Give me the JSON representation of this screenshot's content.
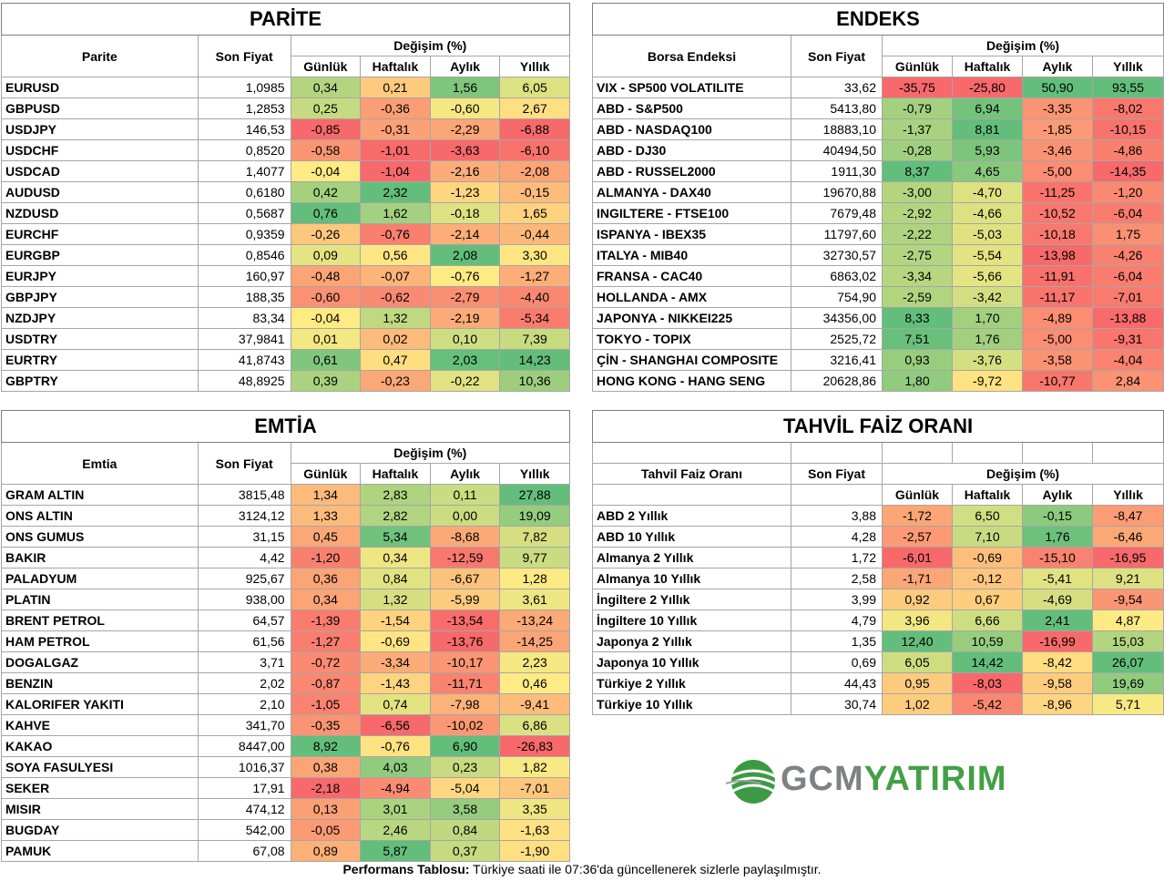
{
  "colors": {
    "low": "#f8696b",
    "mid": "#ffeb84",
    "high": "#63be7b"
  },
  "change_header": "Değişim (%)",
  "period_headers": [
    "Günlük",
    "Haftalık",
    "Aylık",
    "Yıllık"
  ],
  "price_header": "Son Fiyat",
  "parite": {
    "title": "PARİTE",
    "name_header": "Parite",
    "rows": [
      [
        "EURUSD",
        "1,0985",
        "0,34",
        "0,21",
        "1,56",
        "6,05"
      ],
      [
        "GBPUSD",
        "1,2853",
        "0,25",
        "-0,36",
        "-0,60",
        "2,67"
      ],
      [
        "USDJPY",
        "146,53",
        "-0,85",
        "-0,31",
        "-2,29",
        "-6,88"
      ],
      [
        "USDCHF",
        "0,8520",
        "-0,58",
        "-1,01",
        "-3,63",
        "-6,10"
      ],
      [
        "USDCAD",
        "1,4077",
        "-0,04",
        "-1,04",
        "-2,16",
        "-2,08"
      ],
      [
        "AUDUSD",
        "0,6180",
        "0,42",
        "2,32",
        "-1,23",
        "-0,15"
      ],
      [
        "NZDUSD",
        "0,5687",
        "0,76",
        "1,62",
        "-0,18",
        "1,65"
      ],
      [
        "EURCHF",
        "0,9359",
        "-0,26",
        "-0,76",
        "-2,14",
        "-0,44"
      ],
      [
        "EURGBP",
        "0,8546",
        "0,09",
        "0,56",
        "2,08",
        "3,30"
      ],
      [
        "EURJPY",
        "160,97",
        "-0,48",
        "-0,07",
        "-0,76",
        "-1,27"
      ],
      [
        "GBPJPY",
        "188,35",
        "-0,60",
        "-0,62",
        "-2,79",
        "-4,40"
      ],
      [
        "NZDJPY",
        "83,34",
        "-0,04",
        "1,32",
        "-2,19",
        "-5,34"
      ],
      [
        "USDTRY",
        "37,9841",
        "0,01",
        "0,02",
        "0,10",
        "7,39"
      ],
      [
        "EURTRY",
        "41,8743",
        "0,61",
        "0,47",
        "2,03",
        "14,23"
      ],
      [
        "GBPTRY",
        "48,8925",
        "0,39",
        "-0,23",
        "-0,22",
        "10,36"
      ]
    ]
  },
  "endeks": {
    "title": "ENDEKS",
    "name_header": "Borsa Endeksi",
    "rows": [
      [
        "VIX  - SP500 VOLATILITE",
        "33,62",
        "-35,75",
        "-25,80",
        "50,90",
        "93,55"
      ],
      [
        "ABD - S&P500",
        "5413,80",
        "-0,79",
        "6,94",
        "-3,35",
        "-8,02"
      ],
      [
        "ABD - NASDAQ100",
        "18883,10",
        "-1,37",
        "8,81",
        "-1,85",
        "-10,15"
      ],
      [
        "ABD - DJ30",
        "40494,50",
        "-0,28",
        "5,93",
        "-3,46",
        "-4,86"
      ],
      [
        "ABD - RUSSEL2000",
        "1911,30",
        "8,37",
        "4,65",
        "-5,00",
        "-14,35"
      ],
      [
        "ALMANYA - DAX40",
        "19670,88",
        "-3,00",
        "-4,70",
        "-11,25",
        "-1,20"
      ],
      [
        "INGILTERE - FTSE100",
        "7679,48",
        "-2,92",
        "-4,66",
        "-10,52",
        "-6,04"
      ],
      [
        "ISPANYA - IBEX35",
        "11797,60",
        "-2,22",
        "-5,03",
        "-10,18",
        "1,75"
      ],
      [
        "ITALYA - MIB40",
        "32730,57",
        "-2,75",
        "-5,54",
        "-13,98",
        "-4,26"
      ],
      [
        "FRANSA - CAC40",
        "6863,02",
        "-3,34",
        "-5,66",
        "-11,91",
        "-6,04"
      ],
      [
        "HOLLANDA - AMX",
        "754,90",
        "-2,59",
        "-3,42",
        "-11,17",
        "-7,01"
      ],
      [
        "JAPONYA - NIKKEI225",
        "34356,00",
        "8,33",
        "1,70",
        "-4,89",
        "-13,88"
      ],
      [
        "TOKYO - TOPIX",
        "2525,72",
        "7,51",
        "1,76",
        "-5,00",
        "-9,31"
      ],
      [
        "ÇİN - SHANGHAI COMPOSITE",
        "3216,41",
        "0,93",
        "-3,76",
        "-3,58",
        "-4,04"
      ],
      [
        "HONG KONG - HANG SENG",
        "20628,86",
        "1,80",
        "-9,72",
        "-10,77",
        "2,84"
      ]
    ]
  },
  "emtia": {
    "title": "EMTİA",
    "name_header": "Emtia",
    "rows": [
      [
        "GRAM ALTIN",
        "3815,48",
        "1,34",
        "2,83",
        "0,11",
        "27,88"
      ],
      [
        "ONS ALTIN",
        "3124,12",
        "1,33",
        "2,82",
        "0,00",
        "19,09"
      ],
      [
        "ONS GUMUS",
        "31,15",
        "0,45",
        "5,34",
        "-8,68",
        "7,82"
      ],
      [
        "BAKIR",
        "4,42",
        "-1,20",
        "0,34",
        "-12,59",
        "9,77"
      ],
      [
        "PALADYUM",
        "925,67",
        "0,36",
        "0,84",
        "-6,67",
        "1,28"
      ],
      [
        "PLATIN",
        "938,00",
        "0,34",
        "1,32",
        "-5,99",
        "3,61"
      ],
      [
        "BRENT PETROL",
        "64,57",
        "-1,39",
        "-1,54",
        "-13,54",
        "-13,24"
      ],
      [
        "HAM PETROL",
        "61,56",
        "-1,27",
        "-0,69",
        "-13,76",
        "-14,25"
      ],
      [
        "DOGALGAZ",
        "3,71",
        "-0,72",
        "-3,34",
        "-10,17",
        "2,23"
      ],
      [
        "BENZIN",
        "2,02",
        "-0,87",
        "-1,43",
        "-11,71",
        "0,46"
      ],
      [
        "KALORIFER YAKITI",
        "2,10",
        "-1,05",
        "0,74",
        "-7,98",
        "-9,41"
      ],
      [
        "KAHVE",
        "341,70",
        "-0,35",
        "-6,56",
        "-10,02",
        "6,86"
      ],
      [
        "KAKAO",
        "8447,00",
        "8,92",
        "-0,76",
        "6,90",
        "-26,83"
      ],
      [
        "SOYA FASULYESI",
        "1016,37",
        "0,38",
        "4,03",
        "0,23",
        "1,82"
      ],
      [
        "SEKER",
        "17,91",
        "-2,18",
        "-4,94",
        "-5,04",
        "-7,01"
      ],
      [
        "MISIR",
        "474,12",
        "0,13",
        "3,01",
        "3,58",
        "3,35"
      ],
      [
        "BUGDAY",
        "542,00",
        "-0,05",
        "2,46",
        "0,84",
        "-1,63"
      ],
      [
        "PAMUK",
        "67,08",
        "0,89",
        "5,87",
        "0,37",
        "-1,90"
      ]
    ]
  },
  "tahvil": {
    "title": "TAHVİL FAİZ ORANI",
    "name_header": "Tahvil Faiz Oranı",
    "rows": [
      [
        "ABD 2 Yıllık",
        "3,88",
        "-1,72",
        "6,50",
        "-0,15",
        "-8,47"
      ],
      [
        "ABD 10 Yıllık",
        "4,28",
        "-2,57",
        "7,10",
        "1,76",
        "-6,46"
      ],
      [
        "Almanya 2 Yıllık",
        "1,72",
        "-6,01",
        "-0,69",
        "-15,10",
        "-16,95"
      ],
      [
        "Almanya 10 Yıllık",
        "2,58",
        "-1,71",
        "-0,12",
        "-5,41",
        "9,21"
      ],
      [
        "İngiltere 2 Yıllık",
        "3,99",
        "0,92",
        "0,67",
        "-4,69",
        "-9,54"
      ],
      [
        "İngiltere 10 Yıllık",
        "4,79",
        "3,96",
        "6,66",
        "2,41",
        "4,87"
      ],
      [
        "Japonya 2 Yıllık",
        "1,35",
        "12,40",
        "10,59",
        "-16,99",
        "15,03"
      ],
      [
        "Japonya 10 Yıllık",
        "0,69",
        "6,05",
        "14,42",
        "-8,42",
        "26,07"
      ],
      [
        "Türkiye 2 Yıllık",
        "44,43",
        "0,95",
        "-8,03",
        "-9,58",
        "19,69"
      ],
      [
        "Türkiye 10 Yıllık",
        "30,74",
        "1,02",
        "-5,42",
        "-8,96",
        "5,71"
      ]
    ]
  },
  "logo": {
    "part1": "GCM",
    "part2": "YATIRIM"
  },
  "footer": {
    "bold": "Performans Tablosu:",
    "text": " Türkiye saati ile 07:36'da güncellenerek sizlerle paylaşılmıştır."
  }
}
